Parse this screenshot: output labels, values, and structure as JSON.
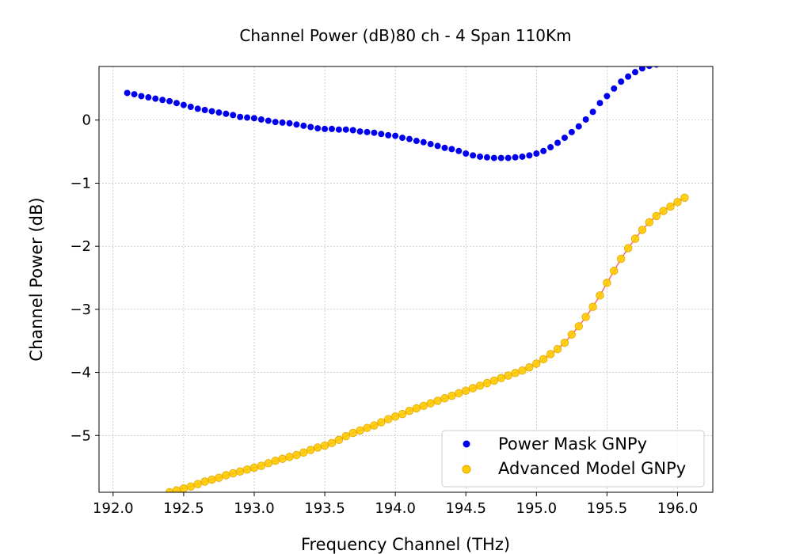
{
  "chart_data": {
    "type": "scatter",
    "title": "Channel Power (dB)80 ch - 4 Span 110Km",
    "xlabel": "Frequency Channel (THz)",
    "ylabel": "Channel Power (dB)",
    "xlim": [
      191.9,
      196.25
    ],
    "ylim": [
      -5.9,
      0.85
    ],
    "xticks": [
      192.0,
      192.5,
      193.0,
      193.5,
      194.0,
      194.5,
      195.0,
      195.5,
      196.0
    ],
    "xtick_labels": [
      "192.0",
      "192.5",
      "193.0",
      "193.5",
      "194.0",
      "194.5",
      "195.0",
      "195.5",
      "196.0"
    ],
    "yticks": [
      -5,
      -4,
      -3,
      -2,
      -1,
      0
    ],
    "ytick_labels": [
      "−5",
      "−4",
      "−3",
      "−2",
      "−1",
      "0"
    ],
    "grid": true,
    "legend_position": "lower-right",
    "series": [
      {
        "name": "Power Mask GNPy",
        "kind": "scatter",
        "color": "#0000ee",
        "x": [
          192.1,
          192.15,
          192.2,
          192.25,
          192.3,
          192.35,
          192.4,
          192.45,
          192.5,
          192.55,
          192.6,
          192.65,
          192.7,
          192.75,
          192.8,
          192.85,
          192.9,
          192.95,
          193.0,
          193.05,
          193.1,
          193.15,
          193.2,
          193.25,
          193.3,
          193.35,
          193.4,
          193.45,
          193.5,
          193.55,
          193.6,
          193.65,
          193.7,
          193.75,
          193.8,
          193.85,
          193.9,
          193.95,
          194.0,
          194.05,
          194.1,
          194.15,
          194.2,
          194.25,
          194.3,
          194.35,
          194.4,
          194.45,
          194.5,
          194.55,
          194.6,
          194.65,
          194.7,
          194.75,
          194.8,
          194.85,
          194.9,
          194.95,
          195.0,
          195.05,
          195.1,
          195.15,
          195.2,
          195.25,
          195.3,
          195.35,
          195.4,
          195.45,
          195.5,
          195.55,
          195.6,
          195.65,
          195.7,
          195.75,
          195.8,
          195.85
        ],
        "y": [
          0.43,
          0.41,
          0.38,
          0.36,
          0.34,
          0.32,
          0.3,
          0.27,
          0.24,
          0.21,
          0.18,
          0.16,
          0.14,
          0.12,
          0.1,
          0.08,
          0.05,
          0.04,
          0.03,
          0.01,
          -0.01,
          -0.03,
          -0.04,
          -0.05,
          -0.07,
          -0.09,
          -0.11,
          -0.13,
          -0.14,
          -0.14,
          -0.15,
          -0.15,
          -0.16,
          -0.18,
          -0.19,
          -0.2,
          -0.22,
          -0.24,
          -0.25,
          -0.28,
          -0.3,
          -0.33,
          -0.35,
          -0.38,
          -0.41,
          -0.44,
          -0.46,
          -0.49,
          -0.53,
          -0.56,
          -0.58,
          -0.59,
          -0.6,
          -0.6,
          -0.6,
          -0.59,
          -0.58,
          -0.56,
          -0.53,
          -0.49,
          -0.43,
          -0.36,
          -0.28,
          -0.19,
          -0.1,
          0.01,
          0.13,
          0.27,
          0.38,
          0.5,
          0.61,
          0.69,
          0.76,
          0.82,
          0.86,
          0.88
        ]
      },
      {
        "name": "Advanced Model GNPy",
        "kind": "scatter",
        "color": "#ffcc00",
        "edge_color": "#e3a600",
        "line_color": "#ff6666",
        "x": [
          192.4,
          192.45,
          192.5,
          192.55,
          192.6,
          192.65,
          192.7,
          192.75,
          192.8,
          192.85,
          192.9,
          192.95,
          193.0,
          193.05,
          193.1,
          193.15,
          193.2,
          193.25,
          193.3,
          193.35,
          193.4,
          193.45,
          193.5,
          193.55,
          193.6,
          193.65,
          193.7,
          193.75,
          193.8,
          193.85,
          193.9,
          193.95,
          194.0,
          194.05,
          194.1,
          194.15,
          194.2,
          194.25,
          194.3,
          194.35,
          194.4,
          194.45,
          194.5,
          194.55,
          194.6,
          194.65,
          194.7,
          194.75,
          194.8,
          194.85,
          194.9,
          194.95,
          195.0,
          195.05,
          195.1,
          195.15,
          195.2,
          195.25,
          195.3,
          195.35,
          195.4,
          195.45,
          195.5,
          195.55,
          195.6,
          195.65,
          195.7,
          195.75,
          195.8,
          195.85,
          195.9,
          195.95,
          196.0,
          196.05
        ],
        "y": [
          -5.9,
          -5.87,
          -5.84,
          -5.81,
          -5.77,
          -5.73,
          -5.7,
          -5.67,
          -5.63,
          -5.6,
          -5.57,
          -5.54,
          -5.51,
          -5.48,
          -5.44,
          -5.4,
          -5.37,
          -5.34,
          -5.31,
          -5.27,
          -5.23,
          -5.19,
          -5.16,
          -5.12,
          -5.07,
          -5.01,
          -4.96,
          -4.92,
          -4.88,
          -4.84,
          -4.79,
          -4.74,
          -4.7,
          -4.66,
          -4.61,
          -4.57,
          -4.53,
          -4.49,
          -4.45,
          -4.41,
          -4.37,
          -4.33,
          -4.29,
          -4.25,
          -4.21,
          -4.17,
          -4.13,
          -4.09,
          -4.05,
          -4.01,
          -3.97,
          -3.92,
          -3.86,
          -3.79,
          -3.71,
          -3.63,
          -3.53,
          -3.4,
          -3.27,
          -3.12,
          -2.96,
          -2.78,
          -2.58,
          -2.39,
          -2.2,
          -2.03,
          -1.88,
          -1.74,
          -1.62,
          -1.52,
          -1.44,
          -1.37,
          -1.3,
          -1.23
        ]
      }
    ]
  }
}
